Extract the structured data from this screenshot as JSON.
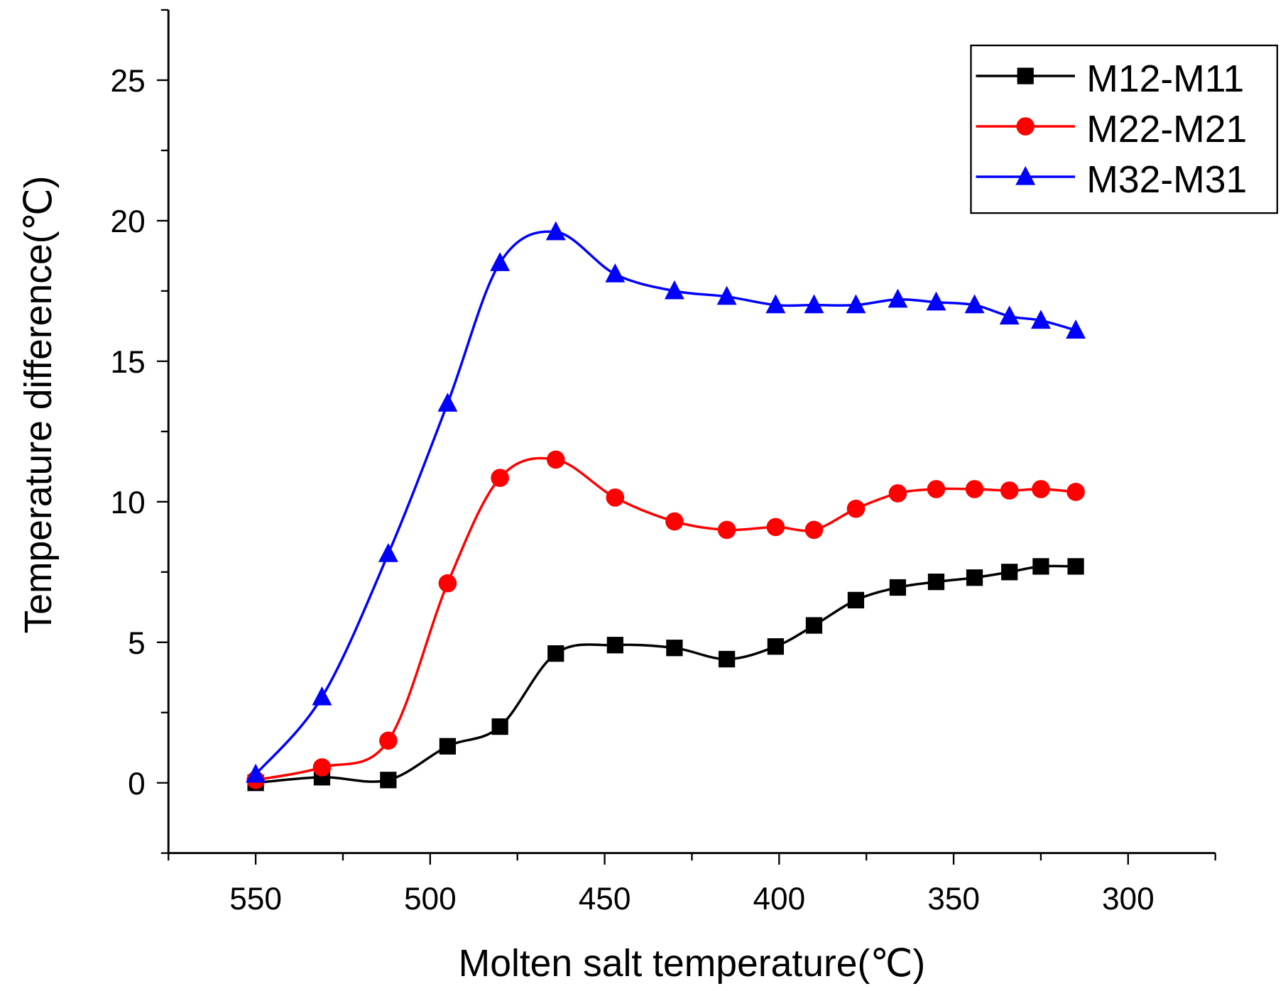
{
  "chart_data": {
    "type": "line",
    "title": "",
    "xlabel": "Molten salt temperature(℃)",
    "ylabel": "Temperature difference(℃)",
    "xlim": [
      575,
      275
    ],
    "ylim": [
      -2.5,
      27.5
    ],
    "x_ticks": [
      550,
      500,
      450,
      400,
      350,
      300
    ],
    "y_ticks": [
      0,
      5,
      10,
      15,
      20,
      25
    ],
    "grid": false,
    "legend_position": "top-right",
    "x": [
      550,
      531,
      512,
      495,
      480,
      464,
      447,
      430,
      415,
      401,
      390,
      378,
      366,
      355,
      344,
      334,
      325,
      315
    ],
    "series": [
      {
        "name": "M12-M11",
        "color": "#000000",
        "marker": "square",
        "values": [
          0,
          0.2,
          0.1,
          1.3,
          2.0,
          4.6,
          4.9,
          4.8,
          4.4,
          4.85,
          5.6,
          6.5,
          6.95,
          7.15,
          7.3,
          7.5,
          7.7,
          7.7
        ]
      },
      {
        "name": "M22-M21",
        "color": "#ff0000",
        "marker": "circle",
        "values": [
          0.1,
          0.55,
          1.5,
          7.1,
          10.85,
          11.5,
          10.15,
          9.3,
          9.0,
          9.1,
          9.0,
          9.75,
          10.3,
          10.45,
          10.45,
          10.4,
          10.45,
          10.35
        ]
      },
      {
        "name": "M32-M31",
        "color": "#0000ff",
        "marker": "triangle",
        "values": [
          0.3,
          3.05,
          8.15,
          13.5,
          18.5,
          19.6,
          18.1,
          17.5,
          17.3,
          17.0,
          17.0,
          17.0,
          17.2,
          17.1,
          17.0,
          16.6,
          16.45,
          16.1
        ]
      }
    ]
  }
}
